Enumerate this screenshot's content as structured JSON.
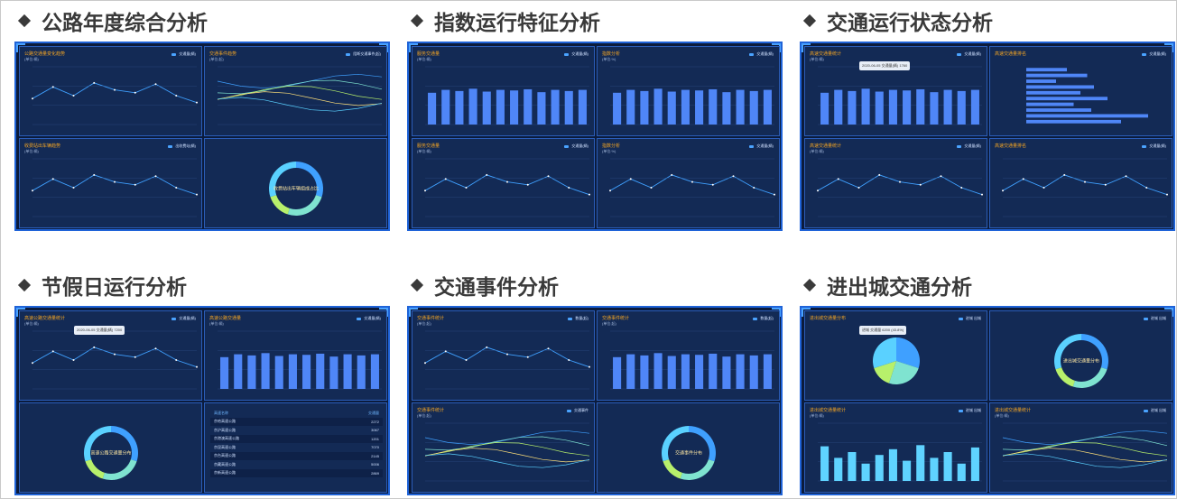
{
  "sections": [
    {
      "title": "公路年度综合分析",
      "panels": [
        {
          "title": "公路交通量变化趋势",
          "unit": "(单位:辆)",
          "legend": "交通量(辆)"
        },
        {
          "title": "交通事件趋势",
          "unit": "(单位:起)",
          "legend": "阻断交通事件(起)"
        },
        {
          "title": "收费站出车辆趋势",
          "unit": "(单位:辆)",
          "legend": "出收费站(辆)"
        },
        {
          "title": "",
          "unit": "",
          "legend": "",
          "center": "收费站出车辆组成占比"
        }
      ]
    },
    {
      "title": "指数运行特征分析",
      "panels": [
        {
          "title": "服务交通量",
          "unit": "(单位:辆)",
          "legend": "交通量(辆)"
        },
        {
          "title": "指数分析",
          "unit": "(单位:%)",
          "legend": "交通量(辆)"
        },
        {
          "title": "服务交通量",
          "unit": "(单位:辆)",
          "legend": "交通量(辆)"
        },
        {
          "title": "指数分析",
          "unit": "(单位:%)",
          "legend": "交通量(辆)"
        }
      ]
    },
    {
      "title": "交通运行状态分析",
      "panels": [
        {
          "title": "高速交通量统计",
          "unit": "(单位:辆)",
          "legend": "交通量(辆)",
          "tooltip": "2020-06-05  交通量(辆) 1760"
        },
        {
          "title": "高速交通量排名",
          "unit": "",
          "legend": "交通量(辆)"
        },
        {
          "title": "高速交通量统计",
          "unit": "(单位:辆)",
          "legend": "交通量(辆)"
        },
        {
          "title": "高速交通量排名",
          "unit": "",
          "legend": "交通量(辆)"
        }
      ]
    },
    {
      "title": "节假日运行分析",
      "panels": [
        {
          "title": "高速公路交通量统计",
          "unit": "(单位:辆)",
          "legend": "交通量(辆)",
          "tooltip": "2020-06-05  交通量(辆) 7200"
        },
        {
          "title": "高速公路交通量",
          "unit": "(单位:辆)",
          "legend": "交通量(辆)"
        },
        {
          "title": "",
          "unit": "",
          "legend": "",
          "center": "高速公路交通量分布"
        },
        {
          "title": "",
          "unit": "",
          "legend": "",
          "table": {
            "headers": [
              "高速名称",
              "交通量"
            ],
            "rows": [
              [
                "京哈高速公路",
                "2272"
              ],
              [
                "京沪高速公路",
                "3067"
              ],
              [
                "京港澳高速公路",
                "1201"
              ],
              [
                "京昆高速公路",
                "7070"
              ],
              [
                "京台高速公路",
                "2145"
              ],
              [
                "京藏高速公路",
                "5006"
              ],
              [
                "京新高速公路",
                "2869"
              ]
            ]
          }
        }
      ]
    },
    {
      "title": "交通事件分析",
      "panels": [
        {
          "title": "交通事件统计",
          "unit": "(单位:起)",
          "legend": "数量(起)"
        },
        {
          "title": "交通事件统计",
          "unit": "(单位:起)",
          "legend": "数量(起)"
        },
        {
          "title": "交通事件统计",
          "unit": "(单位:起)",
          "legend": "交通事件"
        },
        {
          "title": "",
          "unit": "",
          "legend": "",
          "center": "交通事件分布"
        }
      ]
    },
    {
      "title": "进出城交通分析",
      "panels": [
        {
          "title": "进出城交通量分布",
          "unit": "",
          "legend": "进城  出城",
          "tooltip": "进城  交通量 6200 (43.8%)"
        },
        {
          "title": "",
          "unit": "",
          "legend": "进城  出城",
          "center": "进出城交通量分布"
        },
        {
          "title": "进出城交通量统计",
          "unit": "(单位:辆)",
          "legend": "进城  出城"
        },
        {
          "title": "进出城交通量统计",
          "unit": "(单位:辆)",
          "legend": "进城  出城"
        }
      ]
    }
  ],
  "colors": {
    "panel_bg": "#132a55",
    "border": "#2b5db8",
    "accent": "#4aa3ff",
    "title": "#f5a623"
  }
}
